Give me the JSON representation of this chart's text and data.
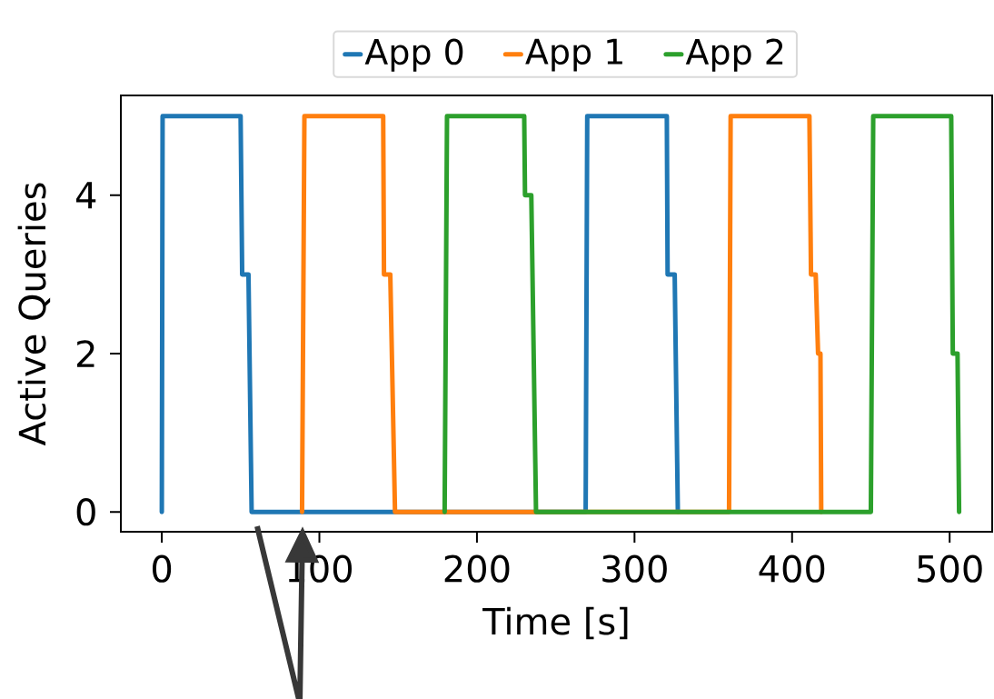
{
  "chart_data": {
    "type": "line",
    "xlabel": "Time [s]",
    "ylabel": "Active Queries",
    "xlim": [
      -26,
      527
    ],
    "ylim": [
      -0.25,
      5.26
    ],
    "xticks": [
      0,
      100,
      200,
      300,
      400,
      500
    ],
    "yticks": [
      0,
      2,
      4
    ],
    "legend": "top",
    "grid": false,
    "marker": "none",
    "line_style": "solid",
    "series": [
      {
        "name": "App 0",
        "color": "#1f77b4",
        "x": [
          0,
          0.5,
          50,
          51,
          55,
          57,
          269,
          270,
          320.5,
          321,
          325.5,
          327.5
        ],
        "values": [
          0,
          5,
          5,
          3,
          3,
          0,
          0,
          5,
          5,
          3,
          3,
          0
        ]
      },
      {
        "name": "App 1",
        "color": "#ff7f0e",
        "x": [
          89,
          90.5,
          140.5,
          141,
          145,
          148,
          360,
          361,
          411,
          412,
          415,
          416.5,
          418,
          418.5
        ],
        "values": [
          0,
          5,
          5,
          3,
          3,
          0,
          0,
          5,
          5,
          3,
          3,
          2,
          2,
          0
        ]
      },
      {
        "name": "App 2",
        "color": "#2ca02c",
        "x": [
          179.5,
          181,
          230,
          230.5,
          234.5,
          237.5,
          450,
          451.5,
          501,
          502,
          505,
          506
        ],
        "values": [
          0,
          5,
          5,
          4,
          4,
          0,
          0,
          5,
          5,
          2,
          2,
          0
        ]
      }
    ]
  }
}
